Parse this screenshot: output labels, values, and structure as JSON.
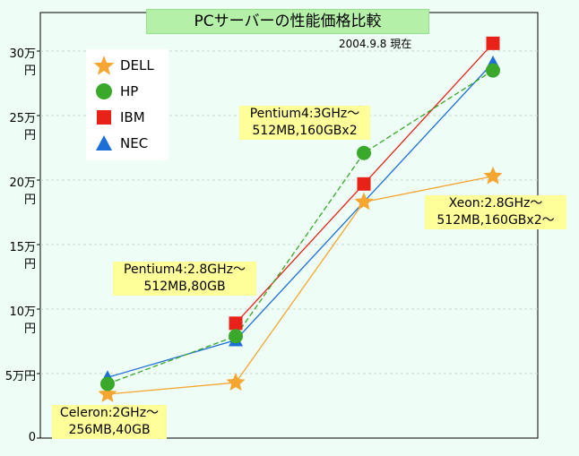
{
  "chart_data": {
    "type": "line",
    "title": "PCサーバーの性能価格比較",
    "subtitle": "2004.9.8 現在",
    "xlabel": "",
    "ylabel": "",
    "ylim": [
      0,
      30
    ],
    "yticks": [
      "0",
      "5万円",
      "10万円",
      "15万円",
      "20万円",
      "25万円",
      "30万円"
    ],
    "x_categories": [
      "Celeron:2GHz〜 256MB,40GB",
      "Pentium4:2.8GHz〜 512MB,80GB",
      "Pentium4:3GHz〜 512MB,160GBx2",
      "Xeon:2.8GHz〜 512MB,160GBx2〜"
    ],
    "legend_position": "top-left",
    "grid": true,
    "series": [
      {
        "name": "DELL",
        "marker": "star",
        "color": "#f5a530",
        "line": "solid",
        "values": [
          3.4,
          4.3,
          18.3,
          20.3
        ]
      },
      {
        "name": "HP",
        "marker": "circle",
        "color": "#3aa82a",
        "line": "dashed",
        "values": [
          4.2,
          7.9,
          22.1,
          28.5
        ]
      },
      {
        "name": "IBM",
        "marker": "square",
        "color": "#e82218",
        "line": "solid",
        "values": [
          null,
          8.9,
          19.7,
          30.6
        ]
      },
      {
        "name": "NEC",
        "marker": "triangle",
        "color": "#1c6fd6",
        "line": "solid",
        "values": [
          4.7,
          7.6,
          null,
          29.1
        ]
      }
    ],
    "annotations": [
      {
        "line1": "Celeron:2GHz〜",
        "line2": "256MB,40GB"
      },
      {
        "line1": "Pentium4:2.8GHz〜",
        "line2": "512MB,80GB"
      },
      {
        "line1": "Pentium4:3GHz〜",
        "line2": "512MB,160GBx2"
      },
      {
        "line1": "Xeon:2.8GHz〜",
        "line2": "512MB,160GBx2〜"
      }
    ]
  }
}
